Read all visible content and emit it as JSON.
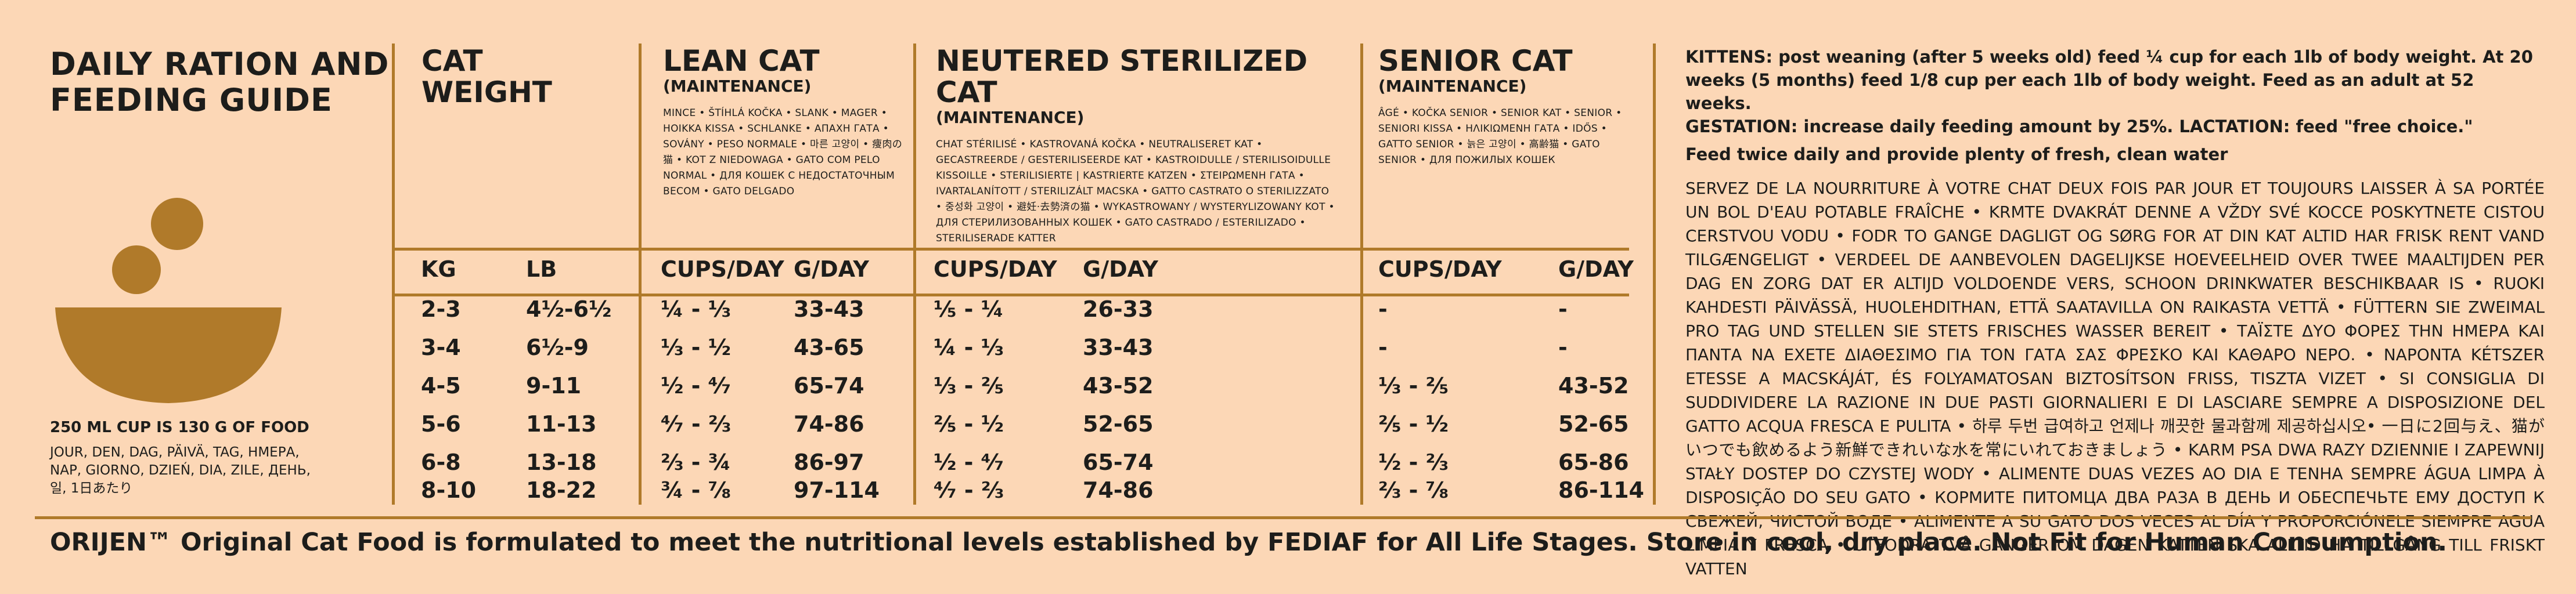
{
  "left": {
    "title_line1": "DAILY RATION AND",
    "title_line2": "FEEDING GUIDE",
    "cup_note": "250 ML CUP IS 130 G OF FOOD",
    "cup_note_translations": "JOUR, DEN, DAG, PÄIVÄ, TAG, ΗΜΕΡΑ, NAP, GIORNO, DZIEŃ, DIA, ZILE, ДЕНЬ, 일, 1日あたり",
    "icon": "bowl-with-kibble-icon",
    "accent_color": "#b07a2a"
  },
  "columns": {
    "weight": {
      "title_line1": "CAT",
      "title_line2": "WEIGHT",
      "unit_kg": "KG",
      "unit_lb": "LB"
    },
    "lean": {
      "title": "LEAN CAT",
      "subtitle": "(MAINTENANCE)",
      "translations": "MINCE • ŠTÍHLÁ KOČKA • SLANK • MAGER • HOIKKA KISSA • SCHLANKE • ΑΠΑΧΗ ΓΑΤΑ • SOVÁNY • PESO NORMALE • 마른 고양이 • 痩肉の猫 • KOT Z NIEDOWAGA • GATO COM PELO NORMAL • ДЛЯ КОШЕК С НЕДОСТАТОЧНЫМ ВЕСОМ • GATO DELGADO",
      "h_cups": "CUPS/DAY",
      "h_g": "G/DAY"
    },
    "neutered": {
      "title": "NEUTERED STERILIZED CAT",
      "subtitle": "(MAINTENANCE)",
      "translations": "CHAT STÉRILISÉ • KASTROVANÁ KOČKA • NEUTRALISERET KAT • GECASTREERDE / GESTERILISEERDE KAT • KASTROIDULLE / STERILISOIDULLE KISSOILLE • STERILISIERTE | KASTRIERTE KATZEN • ΣΤΕΙΡΩΜΕΝΗ ΓΑΤΑ • IVARTALANÍTOTT / STERILIZÁLT MACSKA • GATTO CASTRATO O STERILIZZATO • 중성화 고양이 • 避妊·去勢済の猫 • WYKASTROWANY / WYSTERYLIZOWANY KOT • ДЛЯ СТЕРИЛИЗОВАННЫХ КОШЕК • GATO CASTRADO / ESTERILIZADO • STERILISERADE KATTER",
      "h_cups": "CUPS/DAY",
      "h_g": "G/DAY"
    },
    "senior": {
      "title": "SENIOR CAT",
      "subtitle": "(MAINTENANCE)",
      "translations": "ÂGÉ • KOČKA SENIOR • SENIOR KAT • SENIOR • SENIORI KISSA • ΗΛΙΚΙΩΜΕΝΗ ΓΑΤΑ • IDŐS • GATTO SENIOR • 늙은 고양이 • 高齢猫 • GATO SENIOR • ДЛЯ ПОЖИЛЫХ КОШЕК",
      "h_cups": "CUPS/DAY",
      "h_g": "G/DAY"
    }
  },
  "rows": [
    {
      "kg": "2-3",
      "lb": "4½-6½",
      "lean_cups": "¼ - ⅓",
      "lean_g": "33-43",
      "neut_cups": "⅕ - ¼",
      "neut_g": "26-33",
      "sen_cups": "-",
      "sen_g": "-"
    },
    {
      "kg": "3-4",
      "lb": "6½-9",
      "lean_cups": "⅓ - ½",
      "lean_g": "43-65",
      "neut_cups": "¼ - ⅓",
      "neut_g": "33-43",
      "sen_cups": "-",
      "sen_g": "-"
    },
    {
      "kg": "4-5",
      "lb": "9-11",
      "lean_cups": "½ - ⁴⁄₇",
      "lean_g": "65-74",
      "neut_cups": "⅓ - ⅖",
      "neut_g": "43-52",
      "sen_cups": "⅓ - ⅖",
      "sen_g": "43-52"
    },
    {
      "kg": "5-6",
      "lb": "11-13",
      "lean_cups": "⁴⁄₇ - ⅔",
      "lean_g": "74-86",
      "neut_cups": "⅖ - ½",
      "neut_g": "52-65",
      "sen_cups": "⅖ - ½",
      "sen_g": "52-65"
    },
    {
      "kg": "6-8",
      "lb": "13-18",
      "lean_cups": "⅔ - ¾",
      "lean_g": "86-97",
      "neut_cups": "½ - ⁴⁄₇",
      "neut_g": "65-74",
      "sen_cups": "½ - ⅔",
      "sen_g": "65-86"
    },
    {
      "kg": "8-10",
      "lb": "18-22",
      "lean_cups": "¾ - ⅞",
      "lean_g": "97-114",
      "neut_cups": "⁴⁄₇ - ⅔",
      "neut_g": "74-86",
      "sen_cups": "⅔ - ⅞",
      "sen_g": "86-114"
    }
  ],
  "right": {
    "kittens": "KITTENS: post weaning (after 5 weeks old) feed ¼ cup for each 1lb of body weight. At 20 weeks (5 months) feed 1/8 cup per each 1lb of body weight. Feed as an adult at 52 weeks.",
    "gestation": "GESTATION: increase daily feeding amount by 25%. LACTATION: feed \"free choice.\"",
    "twice": "Feed twice daily and provide plenty of fresh, clean water",
    "translations": "SERVEZ DE LA NOURRITURE À VOTRE CHAT DEUX FOIS PAR JOUR ET TOUJOURS LAISSER À SA PORTÉE UN BOL D'EAU POTABLE FRAÎCHE • KRMTE DVAKRÁT DENNE A VŽDY SVÉ KOCCE POSKYTNETE CISTOU CERSTVOU VODU • FODR TO GANGE DAGLIGT OG SØRG FOR AT DIN KAT ALTID HAR FRISK RENT VAND TILGÆNGELIGT • VERDEEL DE AANBEVOLEN DAGELIJKSE HOEVEELHEID OVER TWEE MAALTIJDEN PER DAG EN ZORG DAT ER ALTIJD VOLDOENDE VERS, SCHOON DRINKWATER BESCHIKBAAR IS • RUOKI KAHDESTI PÄIVÄSSÄ, HUOLEHDITHAN, ETTÄ SAATAVILLA ON RAIKASTA VETTÄ • FÜTTERN SIE ZWEIMAL PRO TAG UND STELLEN SIE STETS FRISCHES WASSER BEREIT • ΤΑΪΣΤΕ ΔΥΟ ΦΟΡΕΣ ΤΗΝ ΗΜΕΡΑ ΚΑΙ ΠΑΝΤΑ ΝΑ ΕΧΕΤΕ ΔΙΑΘΕΣΙΜΟ ΓΙΑ ΤΟΝ ΓΑΤΑ ΣΑΣ ΦΡΕΣΚΟ ΚΑΙ ΚΑΘΑΡΟ ΝΕΡΟ. • NAPONTA KÉTSZER ETESSE A MACSKÁJÁT, ÉS FOLYAMATOSAN BIZTOSÍTSON FRISS, TISZTA VIZET • SI CONSIGLIA DI SUDDIVIDERE LA RAZIONE IN DUE PASTI GIORNALIERI E DI LASCIARE SEMPRE A DISPOSIZIONE DEL GATTO ACQUA FRESCA E PULITA • 하루 두번 급여하고 언제나 깨끗한 물과함께 제공하십시오• 一日に2回与え、猫がいつでも飲めるよう新鮮できれいな水を常にいれておきましょう • KARM PSA DWA RAZY DZIENNIE I ZAPEWNIJ STAŁY DOSTEP DO CZYSTEJ WODY • ALIMENTE DUAS VEZES AO DIA E TENHA SEMPRE ÁGUA LIMPA À DISPOSIÇÃO DO SEU GATO • КОРМИТЕ ПИТОМЦА ДВА РАЗА В ДЕНЬ И ОБЕСПЕЧЬТЕ ЕМУ ДОСТУП К СВЕЖЕЙ, ЧИСТОЙ ВОДЕ • ALIMENTE A SU GATO DOS VECES AL DÍA Y PROPORCIÓNELE SIEMPRE AGUA LIMPIA Y FRESCA • UTFODRA TVÅ GÅNGER OM DAGEN KATTEN SKA ALLTID HA TILLGÅNG TILL FRISKT VATTEN"
  },
  "footer": {
    "text": "ORIJEN™ Original Cat Food is formulated to meet the nutritional levels established by FEDIAF for All Life Stages. Store in cool, dry place. Not Fit for Human Consumption."
  }
}
